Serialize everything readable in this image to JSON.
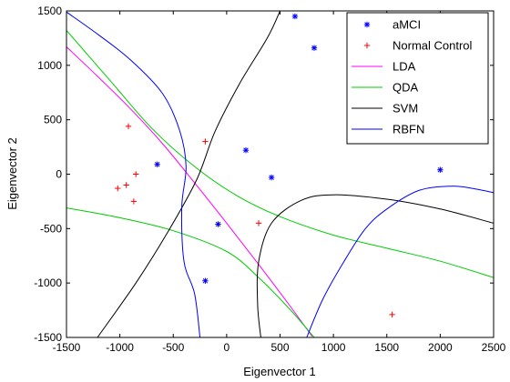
{
  "chart_data": {
    "type": "scatter",
    "xlabel": "Eigenvector 1",
    "ylabel": "Eigenvector 2",
    "xlim": [
      -1500,
      2500
    ],
    "ylim": [
      -1500,
      1500
    ],
    "x_ticks": [
      "-1500",
      "-1000",
      "-500",
      "0",
      "500",
      "1000",
      "1500",
      "2000",
      "2500"
    ],
    "y_ticks": [
      "-1500",
      "-1000",
      "-500",
      "0",
      "500",
      "1000",
      "1500"
    ],
    "grid": false,
    "legend_position": "top-right",
    "series": [
      {
        "name": "aMCI",
        "kind": "points",
        "marker": "asterisk",
        "color": "#0000ff",
        "points": [
          [
            -650,
            90
          ],
          [
            -80,
            -460
          ],
          [
            -200,
            -980
          ],
          [
            180,
            220
          ],
          [
            420,
            -30
          ],
          [
            640,
            1450
          ],
          [
            820,
            1160
          ],
          [
            2000,
            40
          ]
        ]
      },
      {
        "name": "Normal Control",
        "kind": "points",
        "marker": "plus",
        "color": "#ff0000",
        "points": [
          [
            -920,
            440
          ],
          [
            -200,
            300
          ],
          [
            -850,
            0
          ],
          [
            -940,
            -100
          ],
          [
            -1020,
            -130
          ],
          [
            -870,
            -250
          ],
          [
            300,
            -450
          ],
          [
            1550,
            -1290
          ]
        ]
      },
      {
        "name": "LDA",
        "kind": "curves",
        "color": "#ff00ff",
        "curves": [
          [
            [
              -1500,
              1170
            ],
            [
              -1200,
              890
            ],
            [
              -900,
              600
            ],
            [
              -600,
              280
            ],
            [
              -300,
              -80
            ],
            [
              0,
              -450
            ],
            [
              300,
              -830
            ],
            [
              600,
              -1220
            ],
            [
              800,
              -1490
            ]
          ]
        ]
      },
      {
        "name": "QDA",
        "kind": "curves",
        "color": "#00cc00",
        "curves": [
          [
            [
              -1500,
              1320
            ],
            [
              -1100,
              870
            ],
            [
              -700,
              420
            ],
            [
              -300,
              70
            ],
            [
              100,
              -200
            ],
            [
              500,
              -390
            ],
            [
              1000,
              -560
            ],
            [
              1500,
              -680
            ],
            [
              2000,
              -800
            ],
            [
              2500,
              -950
            ]
          ],
          [
            [
              -1500,
              -310
            ],
            [
              -1000,
              -400
            ],
            [
              -500,
              -520
            ],
            [
              0,
              -710
            ],
            [
              300,
              -950
            ],
            [
              600,
              -1250
            ],
            [
              820,
              -1500
            ]
          ]
        ]
      },
      {
        "name": "SVM",
        "kind": "curves",
        "color": "#000000",
        "curves": [
          [
            [
              -1210,
              -1500
            ],
            [
              -850,
              -1000
            ],
            [
              -550,
              -530
            ],
            [
              -280,
              -50
            ],
            [
              -110,
              390
            ],
            [
              120,
              830
            ],
            [
              380,
              1250
            ],
            [
              500,
              1500
            ]
          ],
          [
            [
              320,
              -1500
            ],
            [
              290,
              -1200
            ],
            [
              300,
              -800
            ],
            [
              420,
              -450
            ],
            [
              700,
              -240
            ],
            [
              1000,
              -190
            ],
            [
              1500,
              -230
            ],
            [
              2000,
              -320
            ],
            [
              2500,
              -450
            ]
          ]
        ]
      },
      {
        "name": "RBFN",
        "kind": "curves",
        "color": "#0000ff",
        "curves": [
          [
            [
              -1500,
              1490
            ],
            [
              -1200,
              1280
            ],
            [
              -900,
              1050
            ],
            [
              -600,
              740
            ],
            [
              -440,
              400
            ],
            [
              -380,
              70
            ],
            [
              -420,
              -300
            ],
            [
              -400,
              -800
            ],
            [
              -300,
              -1100
            ],
            [
              -250,
              -1500
            ]
          ],
          [
            [
              750,
              -1500
            ],
            [
              900,
              -1150
            ],
            [
              1100,
              -800
            ],
            [
              1300,
              -500
            ],
            [
              1500,
              -320
            ],
            [
              1800,
              -150
            ],
            [
              2100,
              -110
            ],
            [
              2300,
              -130
            ],
            [
              2500,
              -170
            ]
          ]
        ]
      }
    ]
  }
}
